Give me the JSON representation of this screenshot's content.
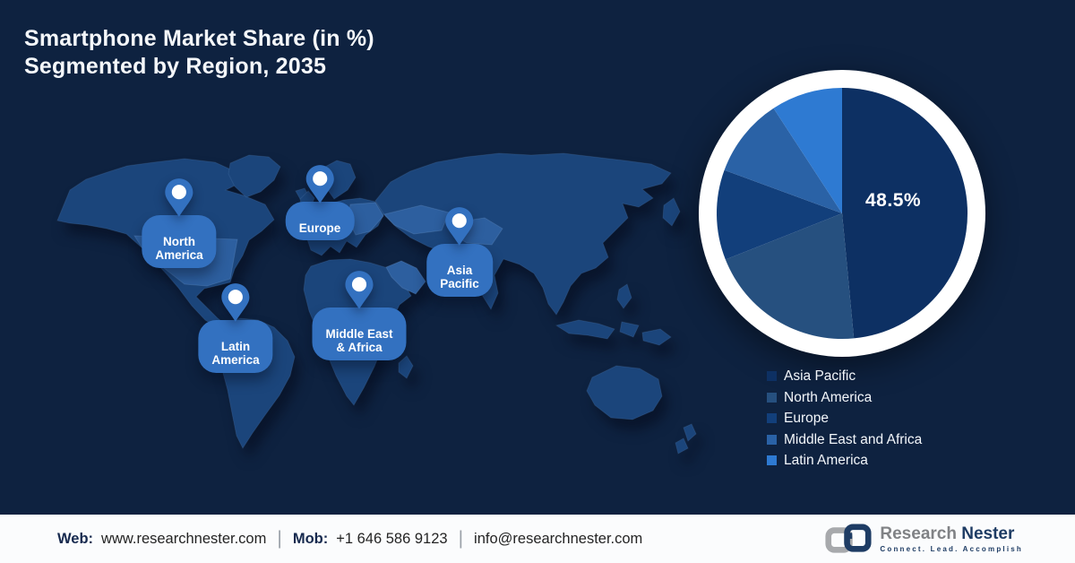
{
  "title": {
    "line1": "Smartphone Market Share (in %)",
    "line2": "Segmented by Region, 2035"
  },
  "map_pins": [
    {
      "id": "north-america",
      "label": "North\nAmerica"
    },
    {
      "id": "europe",
      "label": "Europe"
    },
    {
      "id": "asia-pacific",
      "label": "Asia\nPacific"
    },
    {
      "id": "middle-east-africa",
      "label": "Middle East\n& Africa"
    },
    {
      "id": "latin-america",
      "label": "Latin\nAmerica"
    }
  ],
  "chart_data": {
    "type": "pie",
    "title": "Smartphone Market Share (in %) Segmented by Region, 2035",
    "labels": [
      "Asia Pacific",
      "North America",
      "Europe",
      "Middle East and Africa",
      "Latin America"
    ],
    "values": [
      48.5,
      20.5,
      11.6,
      10.2,
      9.2
    ],
    "colors": [
      "#0d3063",
      "#26507f",
      "#123f7b",
      "#2a62a6",
      "#2e7ad2"
    ],
    "data_label": {
      "series": "Asia Pacific",
      "text": "48.5%"
    },
    "start_angle_deg": 0,
    "direction": "clockwise",
    "ring_color": "#ffffff",
    "legend_position": "bottom-right"
  },
  "footer": {
    "web_label": "Web:",
    "web_value": "www.researchnester.com",
    "mob_label": "Mob:",
    "mob_value": "+1 646 586 9123",
    "email": "info@researchnester.com",
    "separator": "|",
    "logo": {
      "name_part1": "Research",
      "name_part2": "Nester",
      "tagline": "Connect. Lead. Accomplish"
    }
  },
  "colors": {
    "background": "#0e2240",
    "map_base": "#1b457b",
    "map_highlight": "#2d5f9f",
    "pin_and_pill": "#3371c0",
    "footer_navy": "#16294e",
    "logo_gray": "#808285",
    "logo_navy": "#1e3c64"
  }
}
